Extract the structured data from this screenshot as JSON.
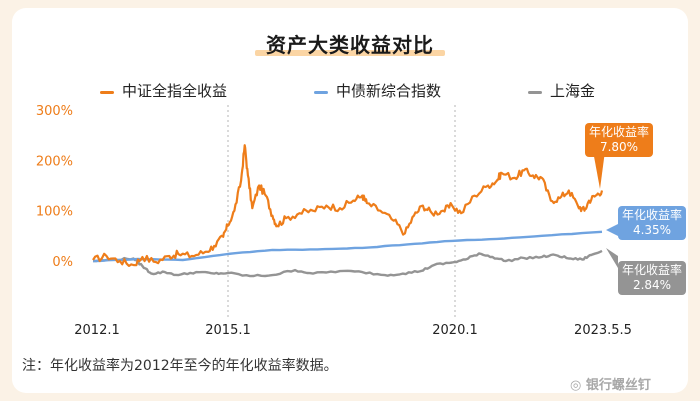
{
  "title": "资产大类收益对比",
  "note": "注：年化收益率为2012年至今的年化收益率数据。",
  "watermark": "银行螺丝钉",
  "chart_data": {
    "type": "line",
    "title": "资产大类收益对比",
    "xlabel": "",
    "ylabel": "",
    "x_ticks": [
      "2012.1",
      "2015.1",
      "2020.1",
      "2023.5.5"
    ],
    "y_ticks": [
      "300%",
      "200%",
      "100%",
      "0%"
    ],
    "ylim": [
      -90,
      310
    ],
    "grid": "vertical dotted at 2015.1 and 2020.1",
    "legend": "top",
    "series": [
      {
        "name": "中证全指全收益",
        "color": "#ee7d1a",
        "annual_return_label": "年化收益率",
        "annual_return_value": "7.80%",
        "points": [
          [
            "2012.0",
            2
          ],
          [
            "2012.3",
            10
          ],
          [
            "2012.6",
            0
          ],
          [
            "2012.9",
            -8
          ],
          [
            "2013.1",
            8
          ],
          [
            "2013.4",
            -2
          ],
          [
            "2013.7",
            10
          ],
          [
            "2013.9",
            14
          ],
          [
            "2014.2",
            10
          ],
          [
            "2014.5",
            18
          ],
          [
            "2014.7",
            30
          ],
          [
            "2014.9",
            48
          ],
          [
            "2015.0",
            70
          ],
          [
            "2015.15",
            100
          ],
          [
            "2015.3",
            160
          ],
          [
            "2015.38",
            230
          ],
          [
            "2015.45",
            170
          ],
          [
            "2015.55",
            105
          ],
          [
            "2015.7",
            150
          ],
          [
            "2015.85",
            130
          ],
          [
            "2016.0",
            90
          ],
          [
            "2016.1",
            70
          ],
          [
            "2016.3",
            85
          ],
          [
            "2016.6",
            95
          ],
          [
            "2016.9",
            100
          ],
          [
            "2017.2",
            110
          ],
          [
            "2017.5",
            105
          ],
          [
            "2017.8",
            120
          ],
          [
            "2018.0",
            130
          ],
          [
            "2018.1",
            115
          ],
          [
            "2018.4",
            100
          ],
          [
            "2018.7",
            80
          ],
          [
            "2018.95",
            55
          ],
          [
            "2019.15",
            90
          ],
          [
            "2019.35",
            110
          ],
          [
            "2019.55",
            95
          ],
          [
            "2019.8",
            100
          ],
          [
            "2020.0",
            110
          ],
          [
            "2020.2",
            95
          ],
          [
            "2020.5",
            130
          ],
          [
            "2020.8",
            150
          ],
          [
            "2021.0",
            160
          ],
          [
            "2021.1",
            175
          ],
          [
            "2021.4",
            165
          ],
          [
            "2021.6",
            180
          ],
          [
            "2021.8",
            170
          ],
          [
            "2022.0",
            165
          ],
          [
            "2022.2",
            120
          ],
          [
            "2022.4",
            125
          ],
          [
            "2022.6",
            140
          ],
          [
            "2022.8",
            110
          ],
          [
            "2022.95",
            100
          ],
          [
            "2023.05",
            120
          ],
          [
            "2023.2",
            130
          ],
          [
            "2023.34",
            140
          ]
        ]
      },
      {
        "name": "中债新综合指数",
        "color": "#6fa3e0",
        "annual_return_label": "年化收益率",
        "annual_return_value": "4.35%",
        "points": [
          [
            "2012.0",
            0
          ],
          [
            "2013.0",
            4
          ],
          [
            "2014.0",
            2
          ],
          [
            "2015.0",
            14
          ],
          [
            "2016.0",
            22
          ],
          [
            "2017.0",
            23
          ],
          [
            "2018.0",
            26
          ],
          [
            "2019.0",
            33
          ],
          [
            "2020.0",
            40
          ],
          [
            "2021.0",
            44
          ],
          [
            "2022.0",
            50
          ],
          [
            "2023.34",
            58
          ]
        ]
      },
      {
        "name": "上海金",
        "color": "#949494",
        "annual_return_label": "年化收益率",
        "annual_return_value": "2.84%",
        "points": [
          [
            "2012.0",
            0
          ],
          [
            "2012.5",
            3
          ],
          [
            "2012.9",
            5
          ],
          [
            "2013.1",
            -10
          ],
          [
            "2013.3",
            -25
          ],
          [
            "2013.6",
            -22
          ],
          [
            "2013.9",
            -28
          ],
          [
            "2014.3",
            -22
          ],
          [
            "2014.7",
            -25
          ],
          [
            "2015.0",
            -24
          ],
          [
            "2015.5",
            -30
          ],
          [
            "2016.0",
            -28
          ],
          [
            "2016.5",
            -18
          ],
          [
            "2016.9",
            -25
          ],
          [
            "2017.5",
            -20
          ],
          [
            "2018.0",
            -22
          ],
          [
            "2018.5",
            -28
          ],
          [
            "2018.9",
            -25
          ],
          [
            "2019.3",
            -20
          ],
          [
            "2019.6",
            -8
          ],
          [
            "2020.0",
            -3
          ],
          [
            "2020.3",
            3
          ],
          [
            "2020.6",
            15
          ],
          [
            "2020.9",
            8
          ],
          [
            "2021.2",
            0
          ],
          [
            "2021.6",
            6
          ],
          [
            "2022.0",
            8
          ],
          [
            "2022.3",
            12
          ],
          [
            "2022.6",
            5
          ],
          [
            "2022.9",
            3
          ],
          [
            "2023.1",
            12
          ],
          [
            "2023.34",
            20
          ]
        ]
      }
    ]
  }
}
